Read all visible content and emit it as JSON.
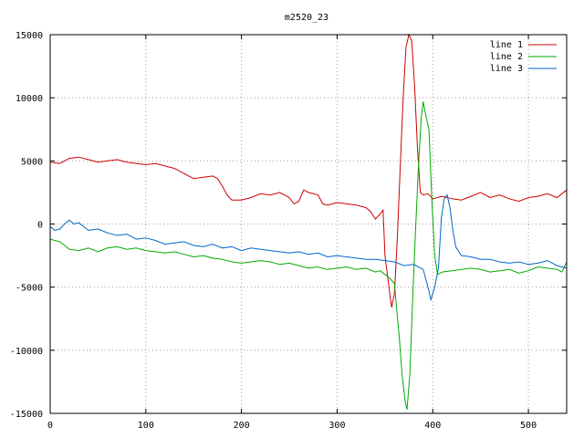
{
  "chart_data": {
    "type": "line",
    "title": "m2520_23",
    "xlabel": "",
    "ylabel": "",
    "xlim": [
      0,
      540
    ],
    "ylim": [
      -15000,
      15000
    ],
    "x_ticks": [
      0,
      100,
      200,
      300,
      400,
      500
    ],
    "y_ticks": [
      -15000,
      -10000,
      -5000,
      0,
      5000,
      10000,
      15000
    ],
    "grid": true,
    "legend_position": "top-right",
    "series": [
      {
        "name": "line 1",
        "color": "#cc0000",
        "points": [
          [
            0,
            4900
          ],
          [
            10,
            4800
          ],
          [
            20,
            5200
          ],
          [
            30,
            5300
          ],
          [
            40,
            5100
          ],
          [
            50,
            4900
          ],
          [
            60,
            5000
          ],
          [
            70,
            5100
          ],
          [
            80,
            4900
          ],
          [
            90,
            4800
          ],
          [
            100,
            4700
          ],
          [
            110,
            4800
          ],
          [
            120,
            4600
          ],
          [
            130,
            4400
          ],
          [
            140,
            4000
          ],
          [
            150,
            3600
          ],
          [
            160,
            3700
          ],
          [
            170,
            3800
          ],
          [
            175,
            3600
          ],
          [
            180,
            3000
          ],
          [
            185,
            2300
          ],
          [
            190,
            1900
          ],
          [
            200,
            1900
          ],
          [
            210,
            2100
          ],
          [
            220,
            2400
          ],
          [
            230,
            2300
          ],
          [
            240,
            2500
          ],
          [
            250,
            2100
          ],
          [
            255,
            1600
          ],
          [
            260,
            1800
          ],
          [
            265,
            2700
          ],
          [
            270,
            2500
          ],
          [
            280,
            2300
          ],
          [
            285,
            1600
          ],
          [
            290,
            1500
          ],
          [
            300,
            1700
          ],
          [
            310,
            1600
          ],
          [
            320,
            1500
          ],
          [
            330,
            1300
          ],
          [
            335,
            1000
          ],
          [
            340,
            400
          ],
          [
            345,
            800
          ],
          [
            348,
            1100
          ],
          [
            350,
            -2500
          ],
          [
            355,
            -5500
          ],
          [
            357,
            -6600
          ],
          [
            360,
            -5500
          ],
          [
            363,
            -1000
          ],
          [
            366,
            4500
          ],
          [
            369,
            10000
          ],
          [
            372,
            14000
          ],
          [
            375,
            15000
          ],
          [
            378,
            14500
          ],
          [
            381,
            11000
          ],
          [
            384,
            6000
          ],
          [
            387,
            2500
          ],
          [
            390,
            2300
          ],
          [
            395,
            2400
          ],
          [
            400,
            2000
          ],
          [
            410,
            2200
          ],
          [
            420,
            2000
          ],
          [
            430,
            1900
          ],
          [
            440,
            2200
          ],
          [
            450,
            2500
          ],
          [
            460,
            2100
          ],
          [
            470,
            2300
          ],
          [
            480,
            2000
          ],
          [
            490,
            1800
          ],
          [
            500,
            2100
          ],
          [
            510,
            2200
          ],
          [
            520,
            2400
          ],
          [
            530,
            2100
          ],
          [
            540,
            2700
          ]
        ]
      },
      {
        "name": "line 2",
        "color": "#00aa00",
        "points": [
          [
            0,
            -1200
          ],
          [
            10,
            -1400
          ],
          [
            20,
            -2000
          ],
          [
            30,
            -2100
          ],
          [
            40,
            -1900
          ],
          [
            50,
            -2200
          ],
          [
            60,
            -1900
          ],
          [
            70,
            -1800
          ],
          [
            80,
            -2000
          ],
          [
            90,
            -1900
          ],
          [
            100,
            -2100
          ],
          [
            110,
            -2200
          ],
          [
            120,
            -2300
          ],
          [
            130,
            -2200
          ],
          [
            140,
            -2400
          ],
          [
            150,
            -2600
          ],
          [
            160,
            -2500
          ],
          [
            170,
            -2700
          ],
          [
            180,
            -2800
          ],
          [
            190,
            -3000
          ],
          [
            200,
            -3100
          ],
          [
            210,
            -3000
          ],
          [
            220,
            -2900
          ],
          [
            230,
            -3000
          ],
          [
            240,
            -3200
          ],
          [
            250,
            -3100
          ],
          [
            260,
            -3300
          ],
          [
            270,
            -3500
          ],
          [
            280,
            -3400
          ],
          [
            290,
            -3600
          ],
          [
            300,
            -3500
          ],
          [
            310,
            -3400
          ],
          [
            320,
            -3600
          ],
          [
            330,
            -3500
          ],
          [
            340,
            -3800
          ],
          [
            345,
            -3700
          ],
          [
            350,
            -4000
          ],
          [
            355,
            -4300
          ],
          [
            360,
            -4700
          ],
          [
            362,
            -6500
          ],
          [
            365,
            -9000
          ],
          [
            368,
            -12000
          ],
          [
            371,
            -14000
          ],
          [
            373,
            -14700
          ],
          [
            376,
            -12000
          ],
          [
            379,
            -6000
          ],
          [
            382,
            -500
          ],
          [
            385,
            4500
          ],
          [
            388,
            8500
          ],
          [
            390,
            9700
          ],
          [
            393,
            8500
          ],
          [
            396,
            7500
          ],
          [
            399,
            2000
          ],
          [
            402,
            -2500
          ],
          [
            405,
            -4000
          ],
          [
            410,
            -3800
          ],
          [
            420,
            -3700
          ],
          [
            430,
            -3600
          ],
          [
            440,
            -3500
          ],
          [
            450,
            -3600
          ],
          [
            460,
            -3800
          ],
          [
            470,
            -3700
          ],
          [
            480,
            -3600
          ],
          [
            490,
            -3900
          ],
          [
            500,
            -3700
          ],
          [
            510,
            -3400
          ],
          [
            520,
            -3500
          ],
          [
            530,
            -3600
          ],
          [
            535,
            -3800
          ],
          [
            540,
            -3000
          ]
        ]
      },
      {
        "name": "line 3",
        "color": "#0066cc",
        "points": [
          [
            0,
            -200
          ],
          [
            5,
            -500
          ],
          [
            10,
            -400
          ],
          [
            15,
            0
          ],
          [
            20,
            300
          ],
          [
            25,
            0
          ],
          [
            30,
            100
          ],
          [
            40,
            -500
          ],
          [
            50,
            -400
          ],
          [
            60,
            -700
          ],
          [
            70,
            -900
          ],
          [
            80,
            -800
          ],
          [
            90,
            -1200
          ],
          [
            100,
            -1100
          ],
          [
            110,
            -1300
          ],
          [
            120,
            -1600
          ],
          [
            130,
            -1500
          ],
          [
            140,
            -1400
          ],
          [
            150,
            -1700
          ],
          [
            160,
            -1800
          ],
          [
            170,
            -1600
          ],
          [
            180,
            -1900
          ],
          [
            190,
            -1800
          ],
          [
            200,
            -2100
          ],
          [
            210,
            -1900
          ],
          [
            220,
            -2000
          ],
          [
            230,
            -2100
          ],
          [
            240,
            -2200
          ],
          [
            250,
            -2300
          ],
          [
            260,
            -2200
          ],
          [
            270,
            -2400
          ],
          [
            280,
            -2300
          ],
          [
            290,
            -2600
          ],
          [
            300,
            -2500
          ],
          [
            310,
            -2600
          ],
          [
            320,
            -2700
          ],
          [
            330,
            -2800
          ],
          [
            340,
            -2800
          ],
          [
            350,
            -2900
          ],
          [
            360,
            -3000
          ],
          [
            370,
            -3300
          ],
          [
            380,
            -3200
          ],
          [
            390,
            -3600
          ],
          [
            395,
            -5000
          ],
          [
            398,
            -6000
          ],
          [
            402,
            -5000
          ],
          [
            406,
            -3500
          ],
          [
            409,
            500
          ],
          [
            412,
            2000
          ],
          [
            415,
            2300
          ],
          [
            418,
            1300
          ],
          [
            421,
            -500
          ],
          [
            424,
            -1800
          ],
          [
            430,
            -2500
          ],
          [
            440,
            -2600
          ],
          [
            450,
            -2800
          ],
          [
            460,
            -2800
          ],
          [
            470,
            -3000
          ],
          [
            480,
            -3100
          ],
          [
            490,
            -3000
          ],
          [
            500,
            -3200
          ],
          [
            510,
            -3100
          ],
          [
            520,
            -2900
          ],
          [
            530,
            -3300
          ],
          [
            540,
            -3500
          ]
        ]
      }
    ]
  }
}
